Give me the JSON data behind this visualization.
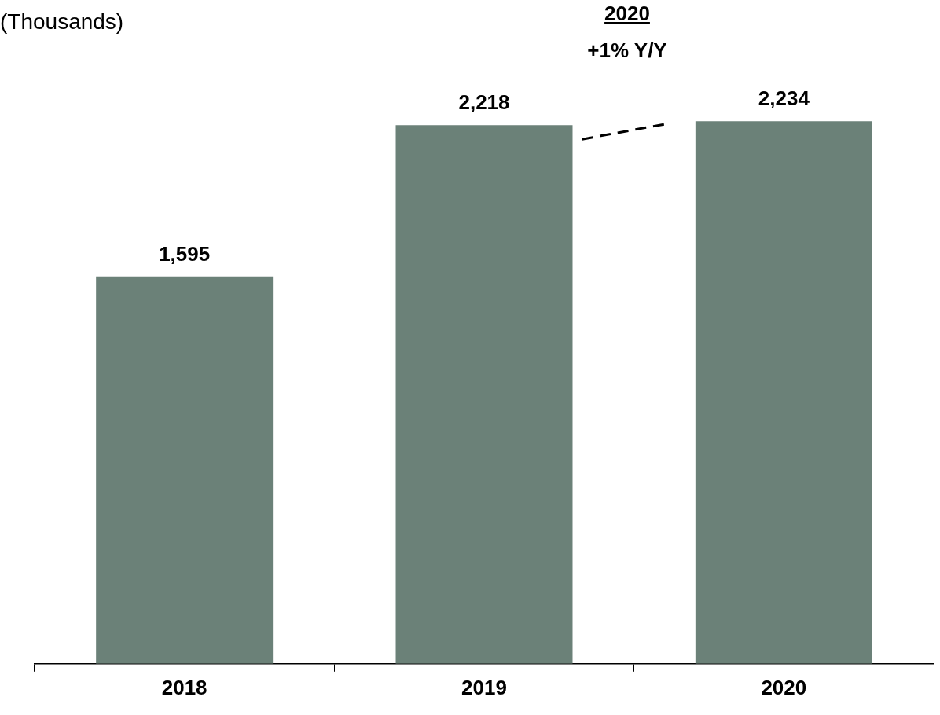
{
  "chart_data": {
    "type": "bar",
    "ylabel": "(Thousands)",
    "categories": [
      "2018",
      "2019",
      "2020"
    ],
    "values": [
      1595,
      2218,
      2234
    ],
    "color": "#6b8178",
    "value_labels": [
      "1,595",
      "2,218",
      "2,234"
    ],
    "annotations": [
      "2020",
      "+1% Y/Y"
    ]
  }
}
